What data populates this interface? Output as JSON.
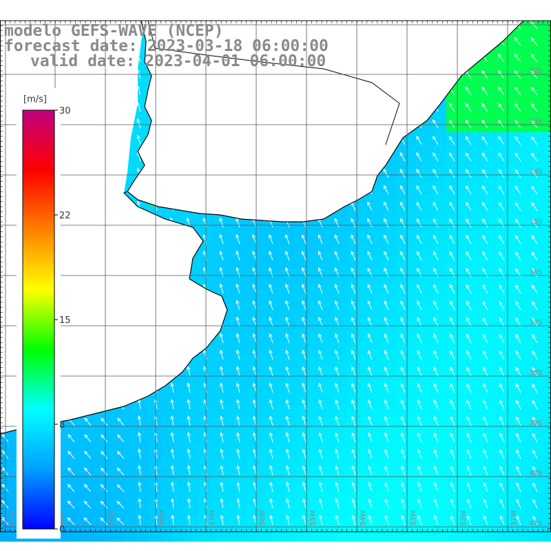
{
  "title": {
    "line1": "modelo GEFS-WAVE (NCEP)",
    "line2": "forecast date: 2023-03-18 06:00:00",
    "line3": "valid date: 2023-04-01 06:00:00"
  },
  "colorbar": {
    "unit": "[m/s]",
    "min": 0,
    "max": 30,
    "ticks": [
      {
        "value": 30,
        "label": "30"
      },
      {
        "value": 22.5,
        "label": "22"
      },
      {
        "value": 15,
        "label": "15"
      },
      {
        "value": 7.5,
        "label": "8"
      },
      {
        "value": 0,
        "label": "0"
      }
    ],
    "stops": [
      "#0000ff",
      "#00a0ff",
      "#00ffff",
      "#00ff00",
      "#ffff00",
      "#ff8000",
      "#ff0000",
      "#c0007f"
    ]
  },
  "lat_labels": [
    "32S",
    "33S",
    "34S",
    "35S",
    "36S",
    "37S",
    "38S",
    "39S",
    "40S",
    "41S"
  ],
  "lon_labels": [
    "61W",
    "60W",
    "59W",
    "58W",
    "57W",
    "56W",
    "55W",
    "54W",
    "53W",
    "52W",
    "51W"
  ],
  "colors": {
    "land": "#ffffff",
    "coast": "#000000",
    "grid": "#555555",
    "arrow": "#ffffff",
    "title": "#8a8a8a"
  }
}
